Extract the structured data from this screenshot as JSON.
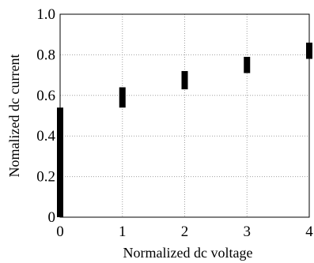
{
  "chart_data": {
    "type": "scatter",
    "xlabel": "Normalized dc voltage",
    "ylabel": "Nomalized dc current",
    "xlim": [
      0,
      4
    ],
    "ylim": [
      0,
      1.0
    ],
    "grid": true,
    "x_ticks": [
      {
        "value": 0,
        "label": "0"
      },
      {
        "value": 1,
        "label": "1"
      },
      {
        "value": 2,
        "label": "2"
      },
      {
        "value": 3,
        "label": "3"
      },
      {
        "value": 4,
        "label": "4"
      }
    ],
    "y_ticks": [
      {
        "value": 0,
        "label": "0"
      },
      {
        "value": 0.2,
        "label": "0.2"
      },
      {
        "value": 0.4,
        "label": "0.4"
      },
      {
        "value": 0.6,
        "label": "0.6"
      },
      {
        "value": 0.8,
        "label": "0.8"
      },
      {
        "value": 1.0,
        "label": "1.0"
      }
    ],
    "points": [
      {
        "x": 0,
        "y_low": 0.0,
        "y_high": 0.54
      },
      {
        "x": 1,
        "y_low": 0.54,
        "y_high": 0.64
      },
      {
        "x": 2,
        "y_low": 0.63,
        "y_high": 0.72
      },
      {
        "x": 3,
        "y_low": 0.71,
        "y_high": 0.79
      },
      {
        "x": 4,
        "y_low": 0.78,
        "y_high": 0.86
      }
    ],
    "colors": {
      "marks": "#000000",
      "grid": "#a0a0a0",
      "axis": "#000000"
    }
  }
}
